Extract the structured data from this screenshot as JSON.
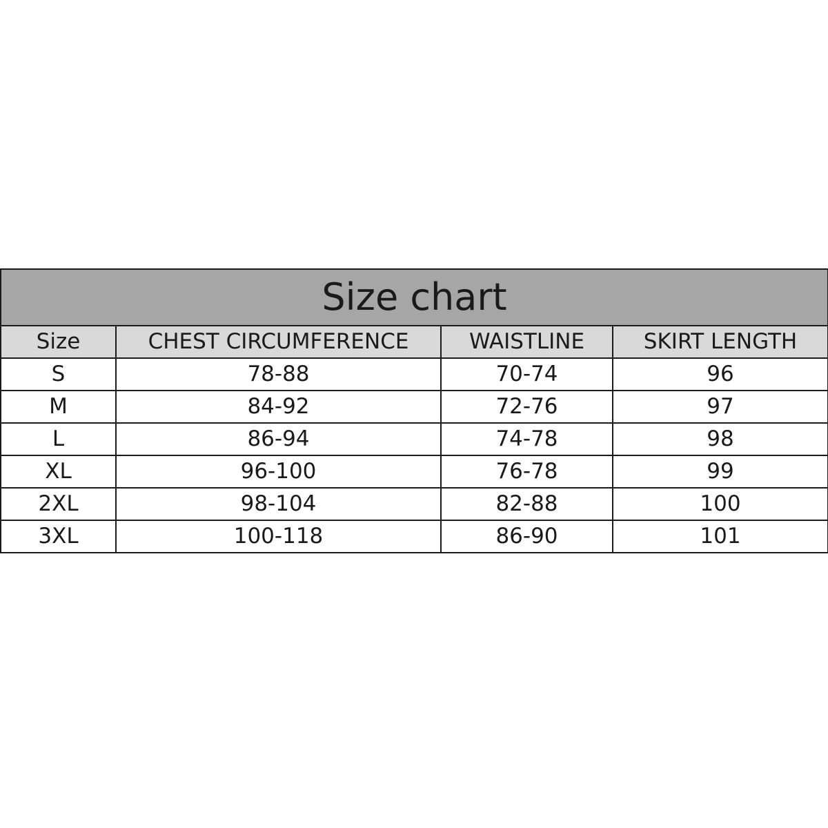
{
  "title": "Size chart",
  "colors": {
    "title_bg": "#a6a6a6",
    "header_bg": "#d9d9d9",
    "border": "#1a1a1a"
  },
  "columns": [
    "Size",
    "CHEST CIRCUMFERENCE",
    "WAISTLINE",
    "SKIRT LENGTH"
  ],
  "rows": [
    [
      "S",
      "78-88",
      "70-74",
      "96"
    ],
    [
      "M",
      "84-92",
      "72-76",
      "97"
    ],
    [
      "L",
      "86-94",
      "74-78",
      "98"
    ],
    [
      "XL",
      "96-100",
      "76-78",
      "99"
    ],
    [
      "2XL",
      "98-104",
      "82-88",
      "100"
    ],
    [
      "3XL",
      "100-118",
      "86-90",
      "101"
    ]
  ]
}
